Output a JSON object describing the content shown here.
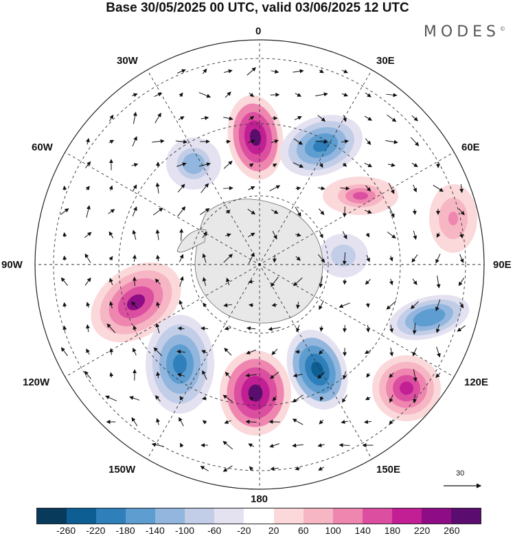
{
  "title": "Base 30/05/2025 00 UTC, valid 03/06/2025 12 UTC",
  "brand": "MODES",
  "brand_mark": "©",
  "longitude_labels": {
    "top": "0",
    "bottom": "180",
    "w30": "30W",
    "e30": "30E",
    "w60": "60W",
    "e60": "60E",
    "w90": "90W",
    "e90": "90E",
    "w120": "120W",
    "e120": "120E",
    "w150": "150W",
    "e150": "150E"
  },
  "reference_vector": {
    "label": "30"
  },
  "colorbar": {
    "colors": [
      "#083a5c",
      "#0d5e93",
      "#2f7fbb",
      "#5d9dd0",
      "#92b6dd",
      "#c2cde7",
      "#e4e2f1",
      "#ffffff",
      "#fbd8da",
      "#f7b6c4",
      "#ee86b0",
      "#db4ea0",
      "#c21f94",
      "#8e0d86",
      "#5a0d6e"
    ],
    "ticks": [
      "-260",
      "-220",
      "-180",
      "-140",
      "-100",
      "-60",
      "-20",
      "20",
      "60",
      "100",
      "140",
      "180",
      "220",
      "260"
    ]
  },
  "anomaly_features": [
    {
      "id": "pink-1",
      "sign": "positive",
      "peak": 260
    },
    {
      "id": "blue-1",
      "sign": "negative",
      "peak": -220
    },
    {
      "id": "blue-2",
      "sign": "negative",
      "peak": -140
    },
    {
      "id": "pink-2",
      "sign": "positive",
      "peak": 220
    },
    {
      "id": "blue-3",
      "sign": "negative",
      "peak": -220
    },
    {
      "id": "pink-3",
      "sign": "positive",
      "peak": 260
    },
    {
      "id": "blue-4",
      "sign": "negative",
      "peak": -260
    },
    {
      "id": "blue-5",
      "sign": "negative",
      "peak": -180
    },
    {
      "id": "pink-4",
      "sign": "positive",
      "peak": 180
    },
    {
      "id": "pink-5",
      "sign": "positive",
      "peak": 140
    },
    {
      "id": "blue-6",
      "sign": "negative",
      "peak": -100
    },
    {
      "id": "pink-6",
      "sign": "positive",
      "peak": 100
    }
  ]
}
